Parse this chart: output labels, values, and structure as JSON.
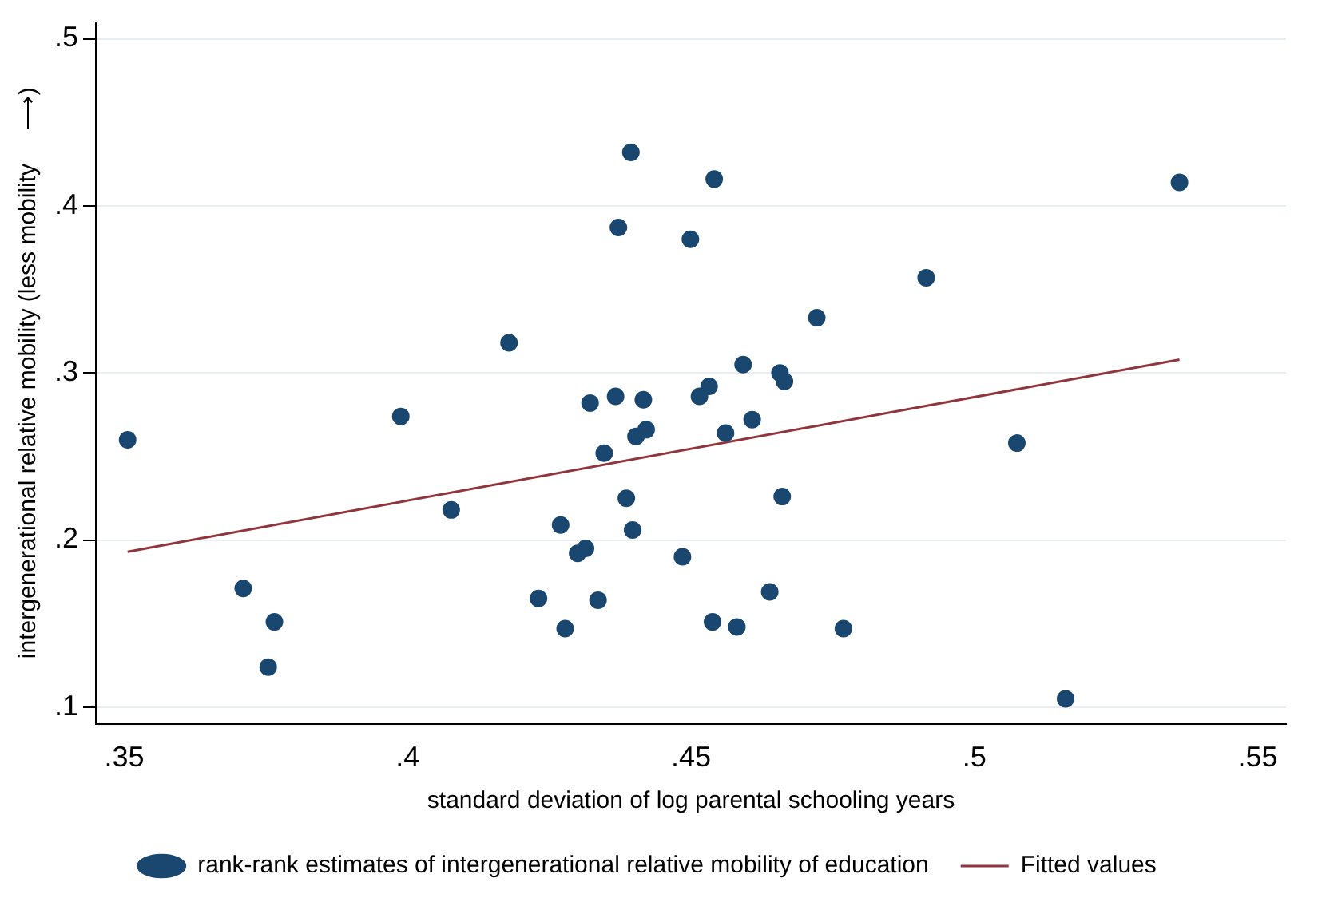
{
  "chart_data": {
    "type": "scatter",
    "xlabel": "standard deviation of log parental schooling years",
    "ylabel": "intergenerational relative mobility (less mobility     ⟶)",
    "xlim": [
      0.345,
      0.555
    ],
    "ylim": [
      0.09,
      0.51
    ],
    "xticks": [
      {
        "value": 0.35,
        "label": ".35"
      },
      {
        "value": 0.4,
        "label": ".4"
      },
      {
        "value": 0.45,
        "label": ".45"
      },
      {
        "value": 0.5,
        "label": ".5"
      },
      {
        "value": 0.55,
        "label": ".55"
      }
    ],
    "yticks": [
      {
        "value": 0.1,
        "label": ".1"
      },
      {
        "value": 0.2,
        "label": ".2"
      },
      {
        "value": 0.3,
        "label": ".3"
      },
      {
        "value": 0.4,
        "label": ".4"
      },
      {
        "value": 0.5,
        "label": ".5"
      }
    ],
    "grid": "y",
    "legend": "bottom",
    "series": [
      {
        "name": "rank-rank estimates of intergenerational relative mobility of education",
        "marker": "circle",
        "color": "#1a476f",
        "x": [
          0.3506,
          0.371,
          0.3765,
          0.3754,
          0.3988,
          0.4077,
          0.4179,
          0.4231,
          0.427,
          0.4278,
          0.43,
          0.4314,
          0.4322,
          0.4336,
          0.4347,
          0.4367,
          0.4372,
          0.4386,
          0.4394,
          0.4397,
          0.4403,
          0.4416,
          0.4421,
          0.4485,
          0.4499,
          0.4515,
          0.4532,
          0.4538,
          0.4541,
          0.4561,
          0.4581,
          0.4592,
          0.4608,
          0.4639,
          0.4657,
          0.4661,
          0.4665,
          0.4722,
          0.4769,
          0.4915,
          0.5075,
          0.5161,
          0.5362
        ],
        "values": [
          0.26,
          0.171,
          0.151,
          0.124,
          0.274,
          0.218,
          0.318,
          0.165,
          0.209,
          0.147,
          0.192,
          0.195,
          0.282,
          0.164,
          0.252,
          0.286,
          0.387,
          0.225,
          0.432,
          0.206,
          0.262,
          0.284,
          0.266,
          0.19,
          0.38,
          0.286,
          0.292,
          0.151,
          0.416,
          0.264,
          0.148,
          0.305,
          0.272,
          0.169,
          0.3,
          0.226,
          0.295,
          0.333,
          0.147,
          0.357,
          0.258,
          0.105,
          0.414
        ]
      },
      {
        "name": "Fitted values",
        "type": "line",
        "marker": "none",
        "color": "#90353b",
        "x": [
          0.3506,
          0.5362
        ],
        "values": [
          0.193,
          0.308
        ]
      }
    ]
  }
}
